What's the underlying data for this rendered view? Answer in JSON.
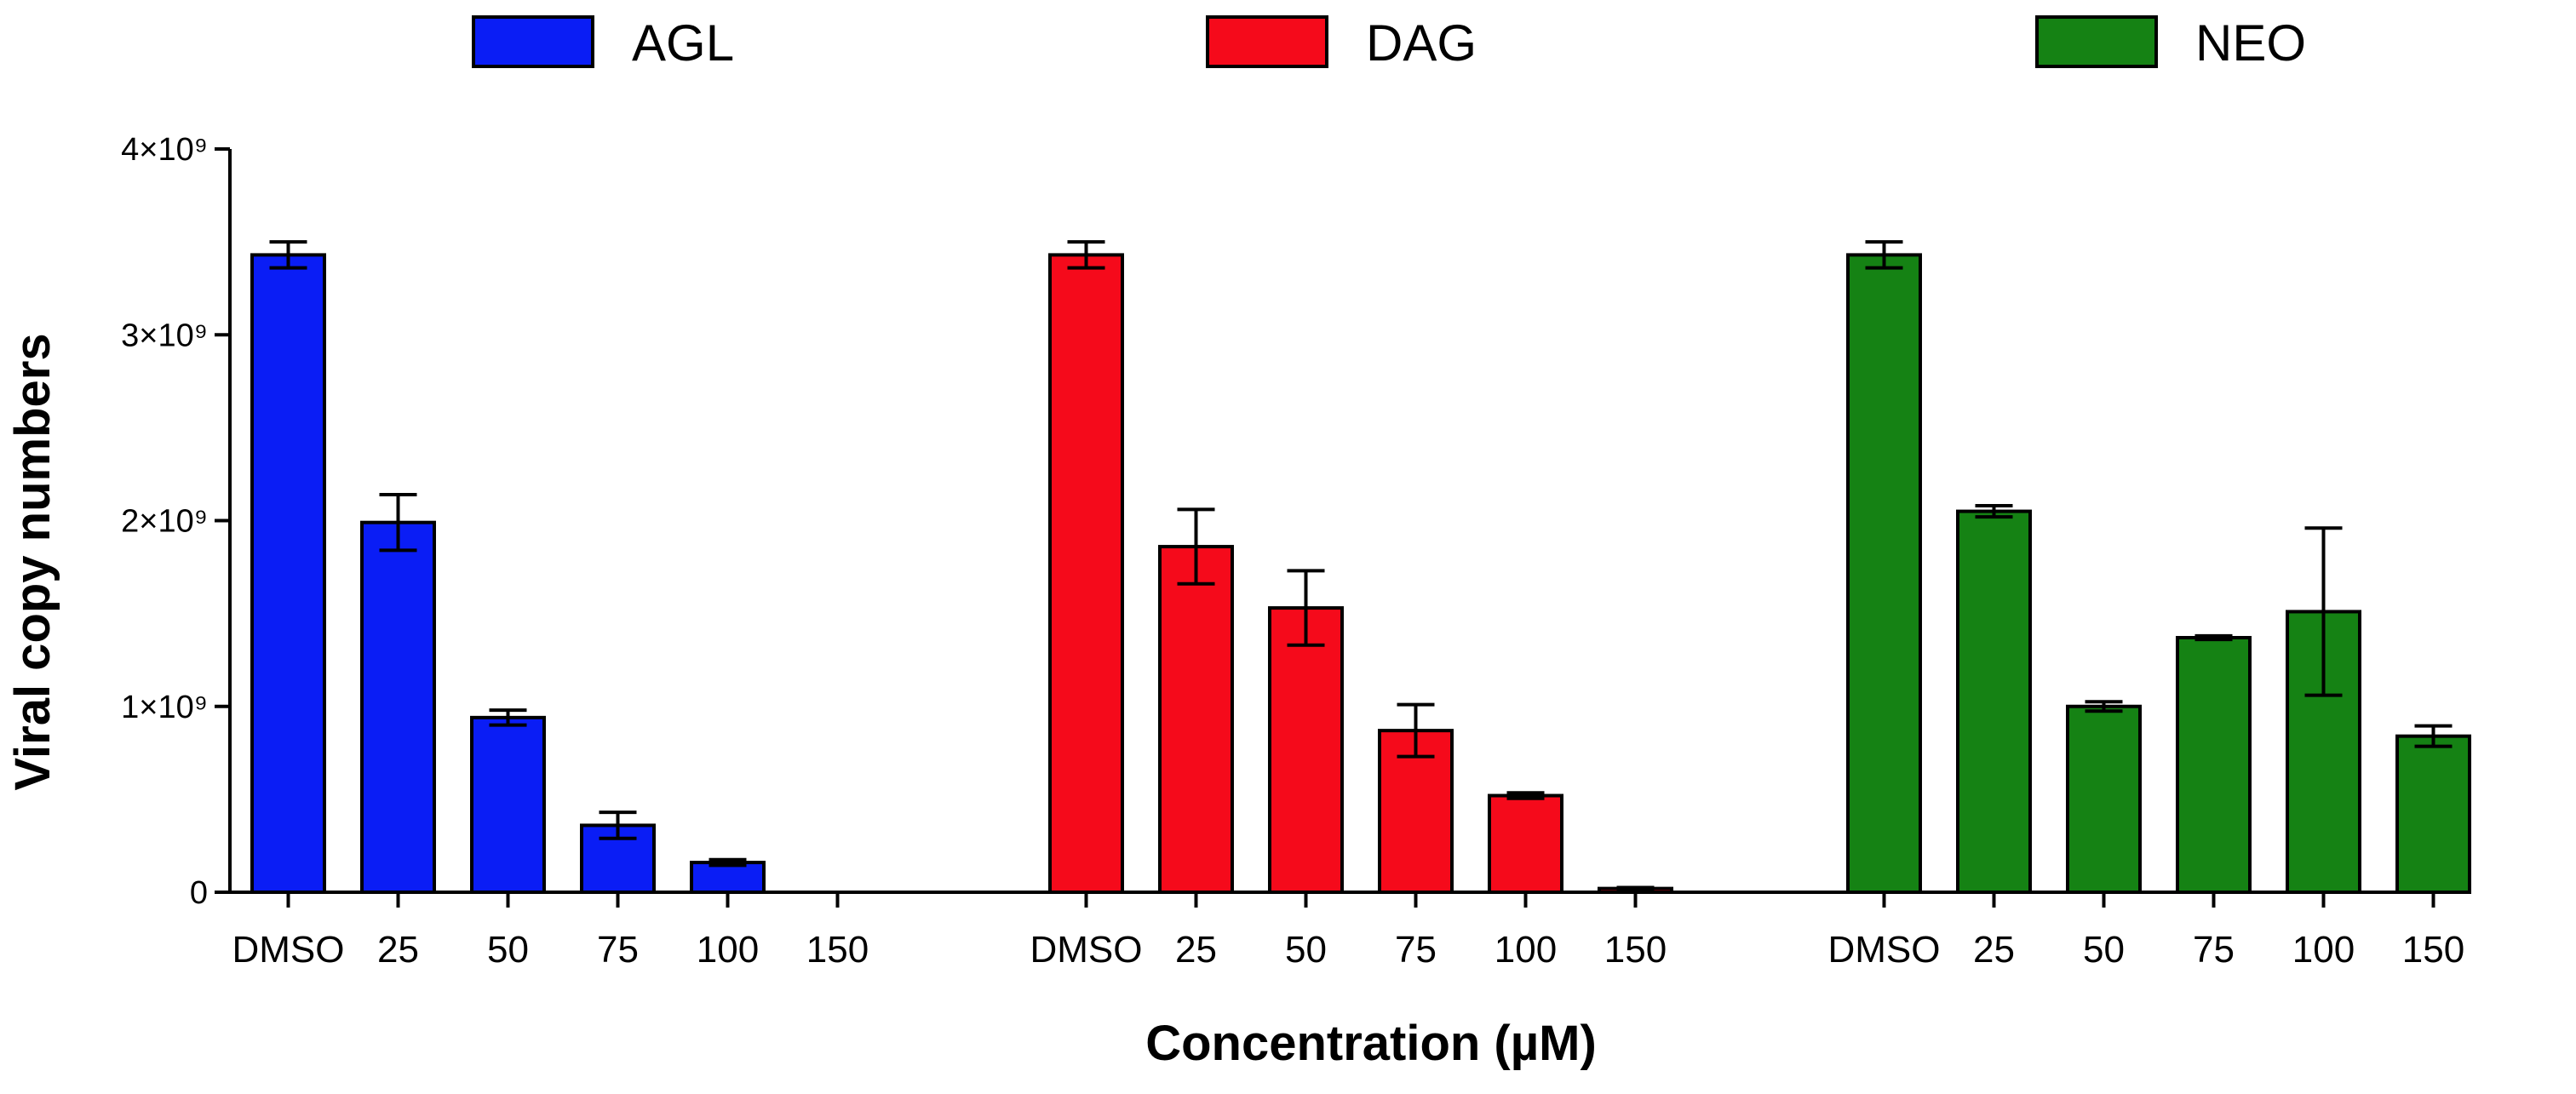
{
  "chart_data": {
    "type": "bar",
    "title": "",
    "xlabel": "Concentration (µM)",
    "ylabel": "Viral copy numbers",
    "ylim": [
      0,
      4000000000
    ],
    "yticks": [
      {
        "value": 0,
        "label": "0"
      },
      {
        "value": 1000000000,
        "label": "1×10⁹"
      },
      {
        "value": 2000000000,
        "label": "2×10⁹"
      },
      {
        "value": 3000000000,
        "label": "3×10⁹"
      },
      {
        "value": 4000000000,
        "label": "4×10⁹"
      }
    ],
    "categories": [
      "DMSO",
      "25",
      "50",
      "75",
      "100",
      "150"
    ],
    "legend_position": "top",
    "groups": [
      {
        "name": "AGL",
        "color": "#0a1df5",
        "values": [
          3430000000,
          1990000000,
          940000000,
          360000000,
          160000000,
          0
        ],
        "errors": [
          70000000,
          150000000,
          40000000,
          70000000,
          15000000,
          0
        ]
      },
      {
        "name": "DAG",
        "color": "#f50a1b",
        "values": [
          3430000000,
          1860000000,
          1530000000,
          870000000,
          520000000,
          20000000
        ],
        "errors": [
          70000000,
          200000000,
          200000000,
          140000000,
          15000000,
          5000000
        ]
      },
      {
        "name": "NEO",
        "color": "#158214",
        "values": [
          3430000000,
          2050000000,
          1000000000,
          1370000000,
          1510000000,
          840000000
        ],
        "errors": [
          70000000,
          30000000,
          25000000,
          10000000,
          450000000,
          55000000
        ]
      }
    ]
  }
}
